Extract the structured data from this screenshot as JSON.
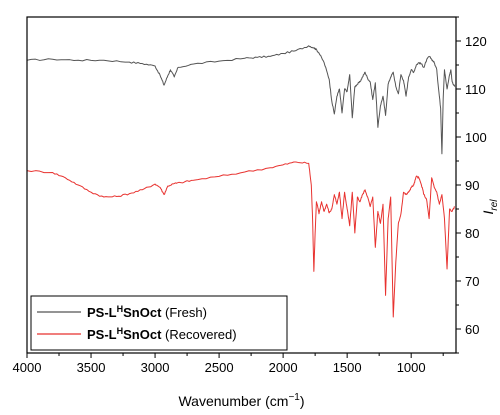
{
  "chart_data": {
    "type": "line",
    "xlabel": "Wavenumber (cm",
    "xlabel_sup": "−1",
    "xlabel_end": ")",
    "ylabel": "I",
    "ylabel_sub": "rel",
    "xlim": [
      4000,
      650
    ],
    "ylim": [
      55,
      125
    ],
    "x_ticks": [
      "4000",
      "3500",
      "3000",
      "2500",
      "2000",
      "1500",
      "1000"
    ],
    "y_ticks": [
      "60",
      "70",
      "80",
      "90",
      "100",
      "110",
      "120"
    ],
    "legend_position": "bottom-left",
    "series": [
      {
        "name_bold_a": "PS-L",
        "name_sup": "H",
        "name_bold_b": "SnOct",
        "name_rest": " (Fresh)",
        "color": "#555555",
        "x": [
          4000,
          3800,
          3600,
          3400,
          3200,
          3100,
          3000,
          2960,
          2930,
          2900,
          2880,
          2850,
          2820,
          2700,
          2500,
          2300,
          2200,
          2100,
          2000,
          1900,
          1800,
          1760,
          1740,
          1720,
          1680,
          1640,
          1620,
          1600,
          1580,
          1560,
          1540,
          1520,
          1500,
          1480,
          1460,
          1440,
          1420,
          1400,
          1380,
          1360,
          1340,
          1320,
          1300,
          1280,
          1260,
          1240,
          1220,
          1200,
          1180,
          1160,
          1140,
          1120,
          1100,
          1080,
          1060,
          1040,
          1020,
          1000,
          980,
          960,
          940,
          920,
          900,
          880,
          860,
          840,
          820,
          800,
          790,
          770,
          760,
          750,
          740,
          720,
          700,
          690,
          680,
          660
        ],
        "y": [
          116,
          116.2,
          116,
          116,
          115.6,
          115.3,
          114.8,
          112.8,
          110.8,
          112.8,
          114,
          112.5,
          114.5,
          115.2,
          115.8,
          116.4,
          116.6,
          116.8,
          117.4,
          118,
          119,
          118.6,
          118.2,
          117.5,
          115.5,
          112,
          107.5,
          104.8,
          108.5,
          110,
          105,
          110,
          109.5,
          113,
          104,
          110.5,
          111,
          111.5,
          112.5,
          113.5,
          112.2,
          111.5,
          107.8,
          111.3,
          102,
          106.5,
          108.5,
          104.5,
          111,
          112.5,
          113.5,
          110.5,
          109,
          113,
          111.8,
          108.5,
          112.5,
          114,
          113.5,
          115,
          115.5,
          115.2,
          114.5,
          116,
          116.8,
          116.2,
          115.5,
          114,
          111,
          106,
          96.5,
          108,
          114,
          110,
          113,
          114,
          111.5,
          110.5
        ]
      },
      {
        "name_bold_a": "PS-L",
        "name_sup": "H",
        "name_bold_b": "SnOct",
        "name_rest": " (Recovered)",
        "color": "#e8322f",
        "x": [
          4000,
          3800,
          3700,
          3600,
          3500,
          3400,
          3300,
          3200,
          3100,
          3000,
          2960,
          2930,
          2900,
          2850,
          2800,
          2700,
          2500,
          2300,
          2100,
          2000,
          1900,
          1800,
          1780,
          1770,
          1760,
          1750,
          1740,
          1730,
          1720,
          1700,
          1680,
          1660,
          1640,
          1620,
          1600,
          1580,
          1560,
          1540,
          1520,
          1500,
          1480,
          1460,
          1440,
          1420,
          1400,
          1380,
          1360,
          1340,
          1320,
          1300,
          1280,
          1260,
          1240,
          1220,
          1200,
          1180,
          1160,
          1140,
          1120,
          1100,
          1080,
          1060,
          1040,
          1020,
          1000,
          980,
          960,
          940,
          920,
          900,
          880,
          860,
          840,
          820,
          800,
          780,
          760,
          740,
          720,
          700,
          680,
          660
        ],
        "y": [
          93,
          92.6,
          91.5,
          90,
          88.5,
          87.5,
          87.6,
          88.2,
          89,
          90.2,
          89.5,
          88,
          89.8,
          90.3,
          90.5,
          91,
          91.8,
          92.7,
          93.6,
          94.2,
          94.8,
          94.5,
          90,
          83,
          72,
          80,
          86.5,
          85.5,
          84,
          86.5,
          84.5,
          86,
          84.2,
          85,
          88,
          86,
          88.5,
          83,
          88.5,
          85,
          81.5,
          88.5,
          80,
          87.5,
          86.5,
          88,
          89,
          87.5,
          85.5,
          87.5,
          77,
          84.5,
          82,
          86,
          67,
          83,
          87.5,
          62.5,
          74,
          82,
          84,
          88.5,
          88,
          88.5,
          89.5,
          90,
          91.8,
          91.5,
          90,
          88,
          87,
          83,
          91.5,
          89.5,
          88.5,
          86,
          88,
          83,
          72.5,
          85,
          84.5,
          85.5
        ]
      }
    ]
  }
}
